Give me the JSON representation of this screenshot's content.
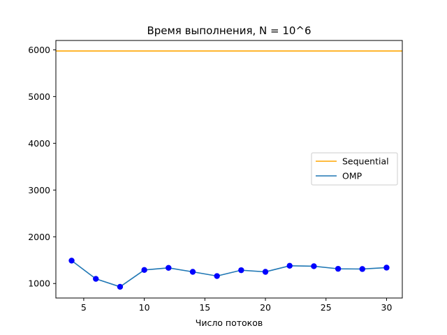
{
  "chart_data": {
    "type": "line",
    "title": "Время выполнения, N = 10^6",
    "xlabel": "Число потоков",
    "ylabel": "",
    "xlim": [
      2.7,
      31.3
    ],
    "ylim": [
      690,
      6200
    ],
    "xticks": [
      5,
      10,
      15,
      20,
      25,
      30
    ],
    "yticks": [
      1000,
      2000,
      3000,
      4000,
      5000,
      6000
    ],
    "grid": false,
    "legend_position": "center-right",
    "series": [
      {
        "name": "Sequential",
        "kind": "hline",
        "value": 5975,
        "color": "#ffa500"
      },
      {
        "name": "OMP",
        "color": "#1f77b4",
        "marker_color": "#0000ff",
        "x": [
          4,
          6,
          8,
          10,
          12,
          14,
          16,
          18,
          20,
          22,
          24,
          26,
          28,
          30
        ],
        "y": [
          1490,
          1100,
          930,
          1290,
          1335,
          1250,
          1160,
          1285,
          1250,
          1380,
          1370,
          1315,
          1310,
          1340
        ]
      }
    ]
  }
}
